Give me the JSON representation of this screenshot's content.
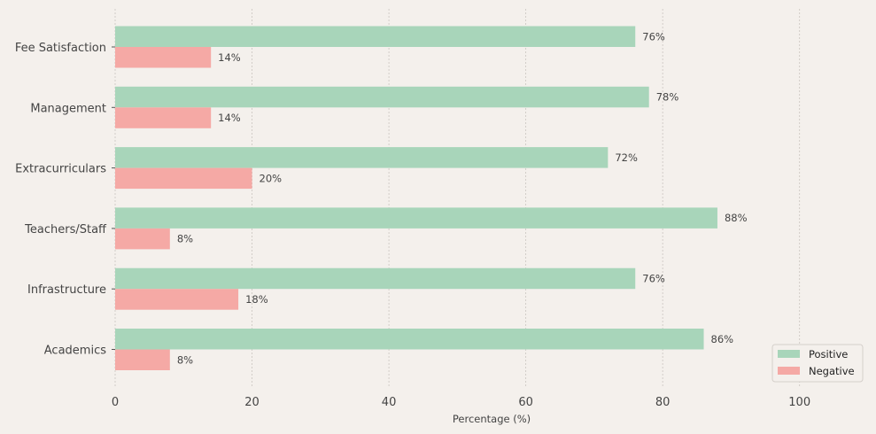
{
  "chart_data": {
    "type": "bar",
    "orientation": "horizontal",
    "title": "",
    "xlabel": "Percentage (%)",
    "ylabel": "",
    "xlim": [
      0,
      110
    ],
    "xticks": [
      0,
      20,
      40,
      60,
      80,
      100
    ],
    "grid": "vertical-dashed",
    "legend_position": "bottom-right",
    "categories": [
      "Fee Satisfaction",
      "Management",
      "Extracurriculars",
      "Teachers/Staff",
      "Infrastructure",
      "Academics"
    ],
    "series": [
      {
        "name": "Positive",
        "color": "#a8d5ba",
        "values": [
          76,
          78,
          72,
          88,
          76,
          86
        ],
        "labels": [
          "76%",
          "78%",
          "72%",
          "88%",
          "76%",
          "86%"
        ]
      },
      {
        "name": "Negative",
        "color": "#f5a9a5",
        "values": [
          14,
          14,
          20,
          8,
          18,
          8
        ],
        "labels": [
          "14%",
          "14%",
          "20%",
          "8%",
          "18%",
          "8%"
        ]
      }
    ]
  },
  "colors": {
    "background": "#f4f0ec",
    "grid": "#c9c4bf",
    "text": "#444444"
  }
}
